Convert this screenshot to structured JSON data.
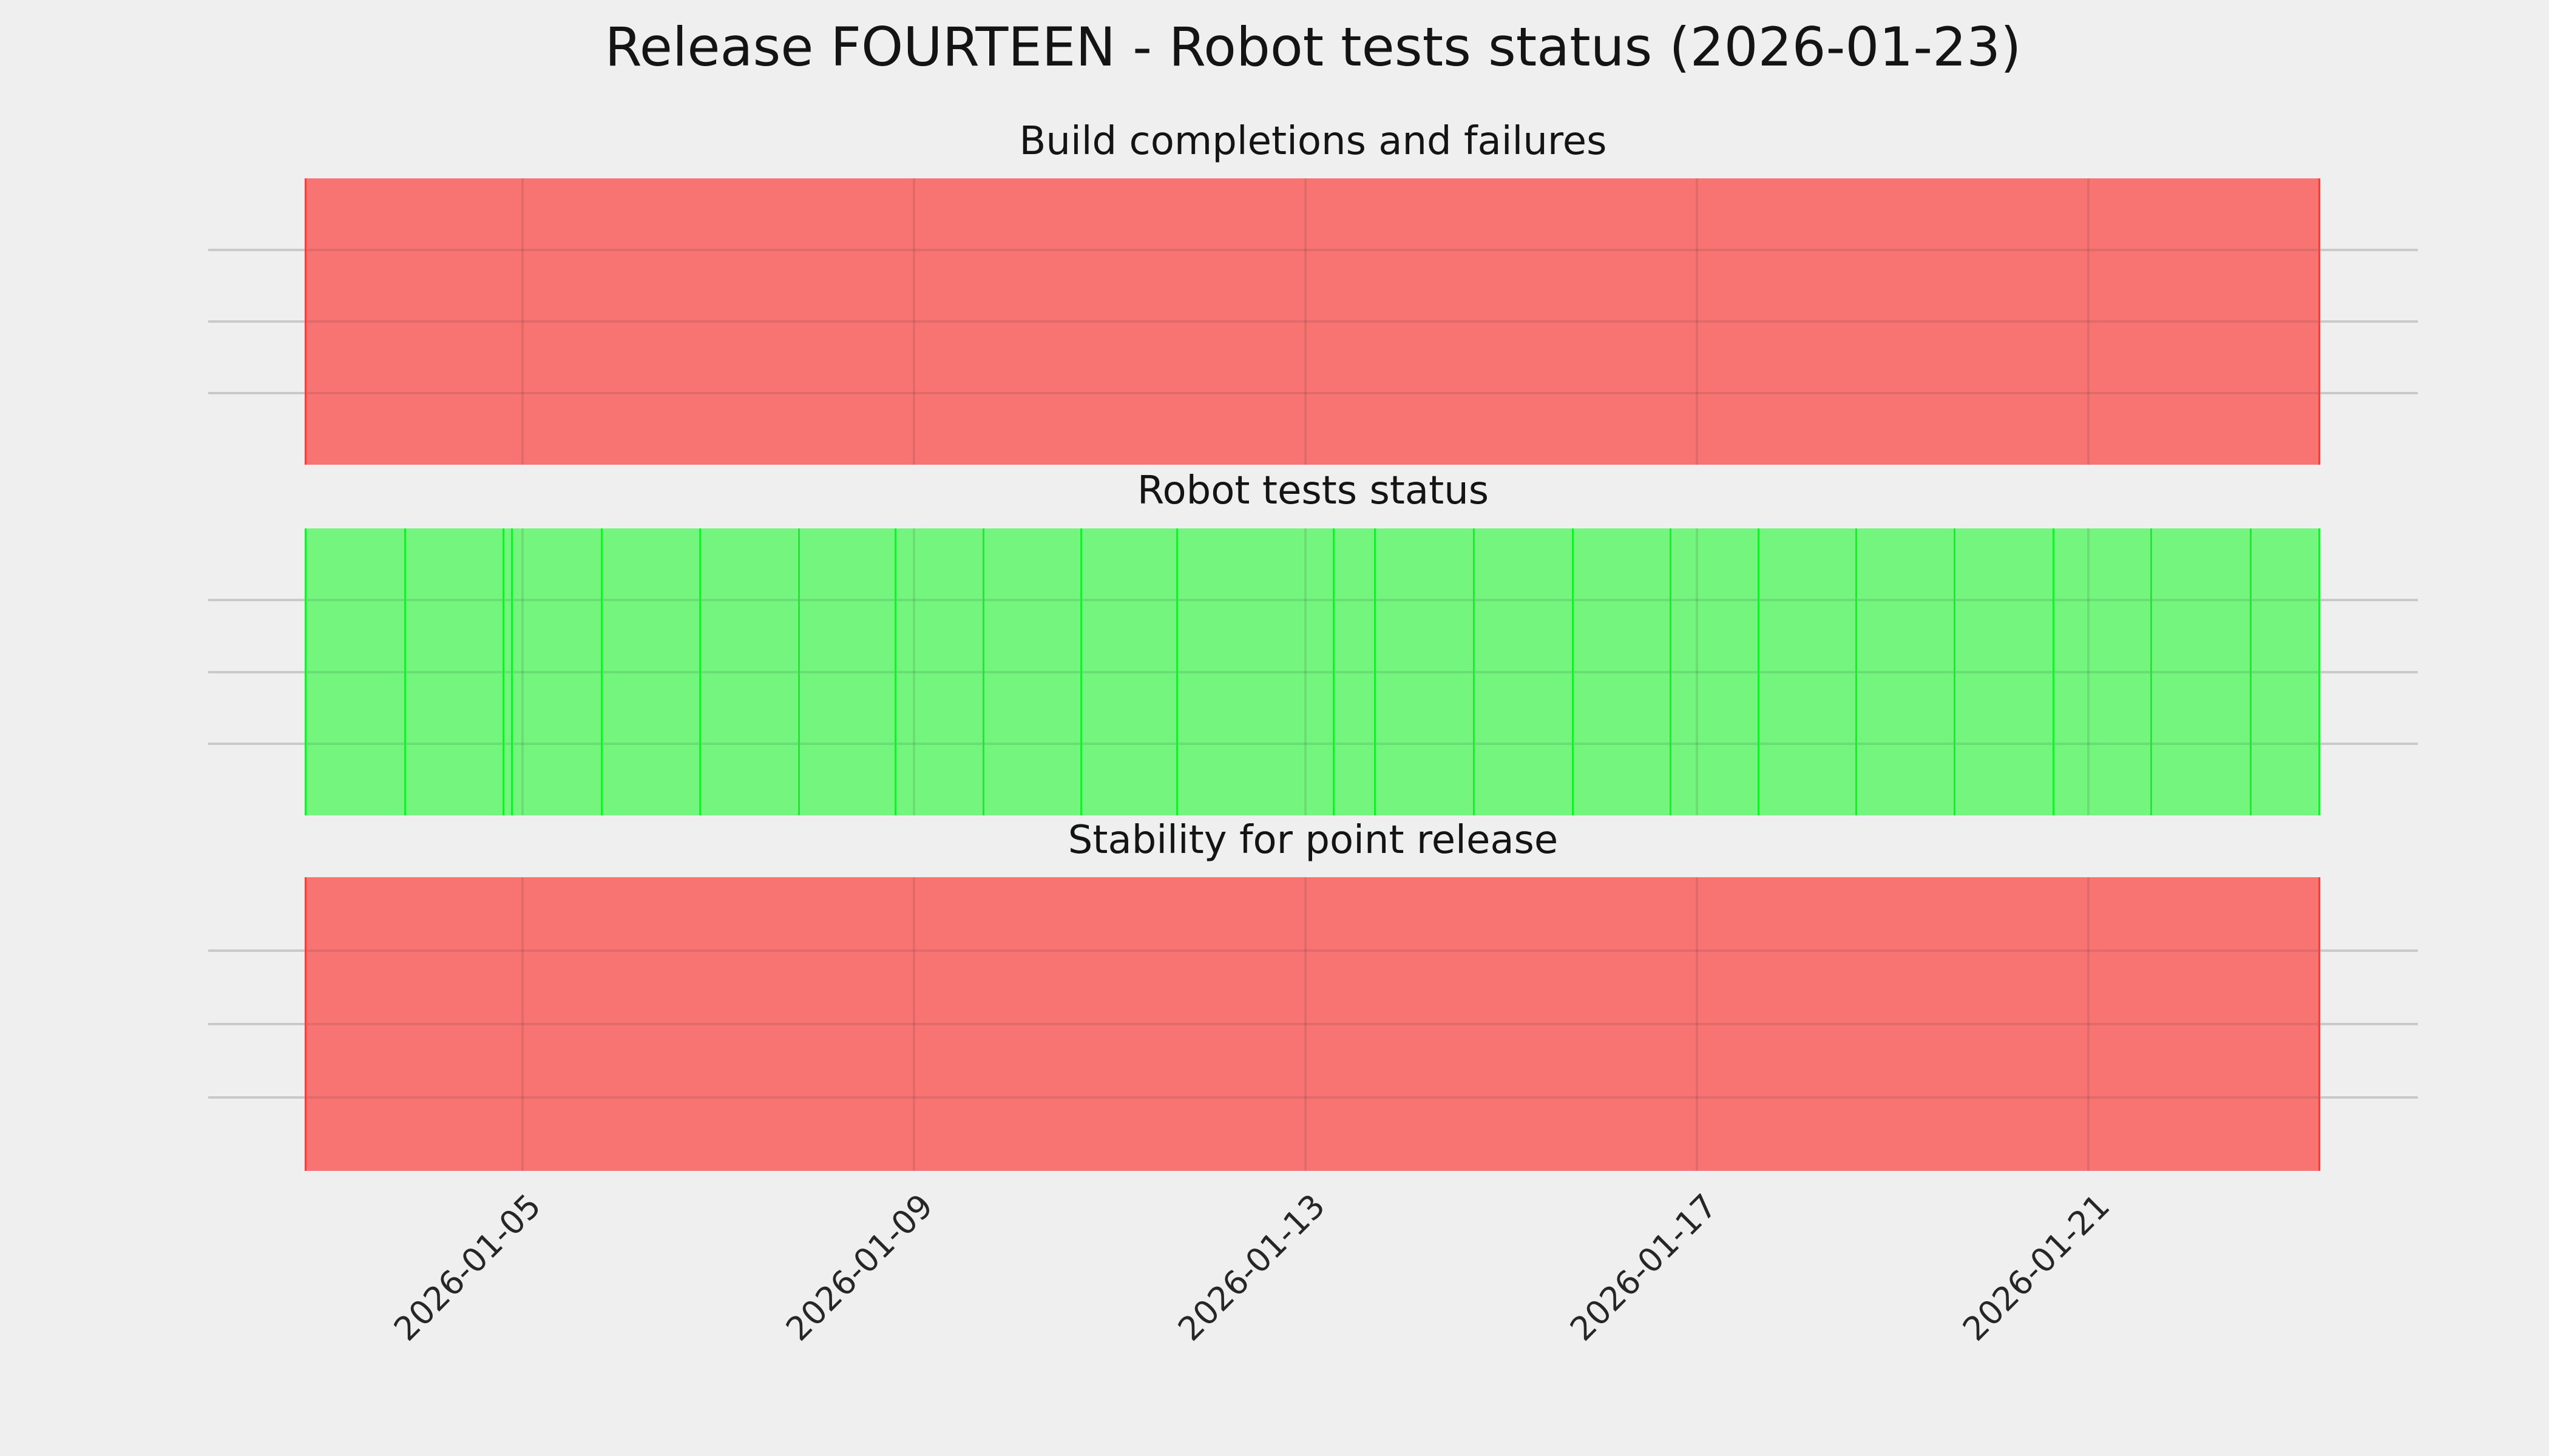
{
  "figure": {
    "title": "Release FOURTEEN - Robot tests status (2026-01-23)",
    "background_color": "#EFEFEF",
    "grid_color": "#C9C9C9",
    "text_color": "#141414"
  },
  "x_axis": {
    "start_day_jan_2026": 2.79,
    "end_day_jan_2026": 23.35,
    "tick_days": [
      5,
      9,
      13,
      17,
      21
    ],
    "tick_labels": [
      "2026-01-05",
      "2026-01-09",
      "2026-01-13",
      "2026-01-17",
      "2026-01-21"
    ],
    "label_rotation_deg": 45
  },
  "chart_data": [
    {
      "type": "bar",
      "subtype": "status-timeline",
      "title": "Build completions and failures",
      "status": "failing",
      "fill_color": "#F87472",
      "edge_color": "#F73E3D",
      "span_days": [
        2.79,
        23.35
      ],
      "run_boundaries_days": [
        2.79,
        23.35
      ],
      "ylim": [
        0,
        4
      ],
      "y_gridline_values": [
        1,
        2,
        3
      ]
    },
    {
      "type": "bar",
      "subtype": "status-timeline",
      "title": "Robot tests status",
      "status": "passing",
      "fill_color": "#73F57E",
      "edge_color": "#16EF2C",
      "span_days": [
        2.79,
        23.35
      ],
      "run_boundaries_days": [
        2.79,
        3.8,
        4.8,
        4.89,
        5.81,
        6.81,
        7.82,
        8.81,
        9.71,
        10.71,
        11.69,
        13.29,
        13.71,
        14.72,
        15.73,
        16.73,
        17.63,
        18.63,
        19.63,
        20.64,
        21.64,
        22.66,
        23.35
      ],
      "ylim": [
        0,
        4
      ],
      "y_gridline_values": [
        1,
        2,
        3
      ]
    },
    {
      "type": "bar",
      "subtype": "status-timeline",
      "title": "Stability for point release",
      "status": "failing",
      "fill_color": "#F87472",
      "edge_color": "#F73E3D",
      "span_days": [
        2.79,
        23.35
      ],
      "run_boundaries_days": [
        2.79,
        23.35
      ],
      "ylim": [
        0,
        4
      ],
      "y_gridline_values": [
        1,
        2,
        3
      ]
    }
  ]
}
